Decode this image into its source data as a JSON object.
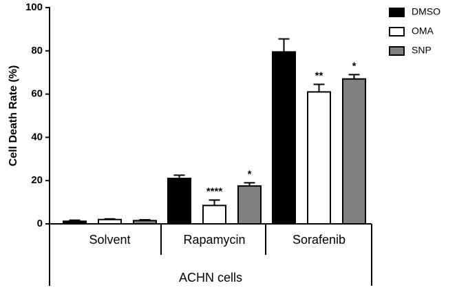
{
  "chart_data": {
    "type": "bar",
    "ylabel": "Cell Death Rate  (%)",
    "xlabel": "ACHN cells",
    "categories": [
      "Solvent",
      "Rapamycin",
      "Sorafenib"
    ],
    "ylim": [
      0,
      100
    ],
    "yticks": [
      0,
      20,
      40,
      60,
      80,
      100
    ],
    "series": [
      {
        "name": "DMSO",
        "color": "#000000",
        "values": [
          1.2,
          21,
          79.5
        ],
        "errors": [
          0.5,
          1.5,
          6
        ],
        "significance": [
          null,
          null,
          null
        ]
      },
      {
        "name": "OMA",
        "color": "#ffffff",
        "values": [
          2,
          8.5,
          61
        ],
        "errors": [
          0.3,
          2.5,
          3.5
        ],
        "significance": [
          null,
          "****",
          "**"
        ]
      },
      {
        "name": "SNP",
        "color": "#808080",
        "values": [
          1.5,
          17.5,
          67
        ],
        "errors": [
          0.4,
          1.5,
          2
        ],
        "significance": [
          null,
          "*",
          "*"
        ]
      }
    ]
  }
}
